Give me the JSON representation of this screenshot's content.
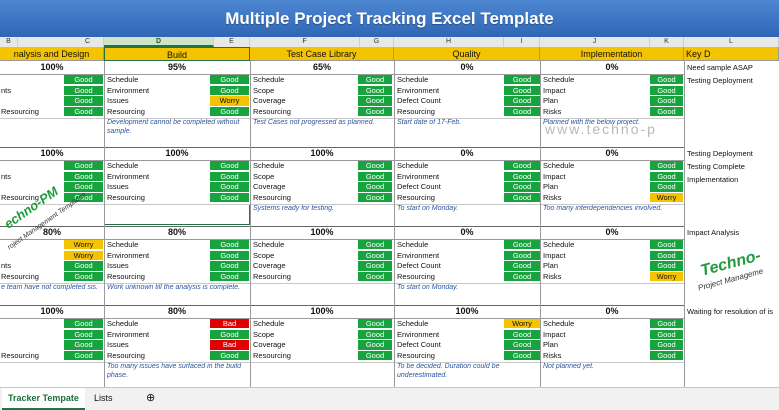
{
  "window": {
    "title": "Multiple Project Tracking Excel Template"
  },
  "column_letters": [
    "B",
    "C",
    "D",
    "E",
    "F",
    "G",
    "H",
    "I",
    "J",
    "K",
    "L"
  ],
  "sections": [
    "nalysis and Design",
    "Build",
    "Test Case Library",
    "Quality",
    "Implementation",
    "Key D"
  ],
  "projects": [
    {
      "percents": [
        "100%",
        "95%",
        "65%",
        "0%",
        "0%"
      ],
      "analysis": {
        "labels": [
          "",
          "nts",
          "",
          "Resourcing"
        ],
        "status": [
          "Good",
          "Good",
          "Good",
          "Good"
        ]
      },
      "build": {
        "labels": [
          "Schedule",
          "Environment",
          "Issues",
          "Resourcing"
        ],
        "status": [
          "Good",
          "Good",
          "Worry",
          "Good"
        ],
        "note": "Development cannot be completed without sample."
      },
      "test": {
        "labels": [
          "Schedule",
          "Scope",
          "Coverage",
          "Resourcing"
        ],
        "status": [
          "Good",
          "Good",
          "Good",
          "Good"
        ],
        "note": "Test Cases not progressed as planned."
      },
      "quality": {
        "labels": [
          "Schedule",
          "Environment",
          "Defect Count",
          "Resourcing"
        ],
        "status": [
          "Good",
          "Good",
          "Good",
          "Good"
        ],
        "note": "Start date of 17-Feb."
      },
      "impl": {
        "labels": [
          "Schedule",
          "Impact",
          "Plan",
          "Risks"
        ],
        "status": [
          "Good",
          "Good",
          "Good",
          "Good"
        ],
        "note": "Planned with the below project."
      },
      "analysis_note": "",
      "key": [
        "Need sample ASAP",
        "Testing Deployment"
      ]
    },
    {
      "percents": [
        "100%",
        "100%",
        "100%",
        "0%",
        "0%"
      ],
      "analysis": {
        "labels": [
          "",
          "nts",
          "",
          "Resourcing"
        ],
        "status": [
          "Good",
          "Good",
          "Good",
          "Good"
        ]
      },
      "build": {
        "labels": [
          "Schedule",
          "Environment",
          "Issues",
          "Resourcing"
        ],
        "status": [
          "Good",
          "Good",
          "Good",
          "Good"
        ],
        "note": ""
      },
      "test": {
        "labels": [
          "Schedule",
          "Scope",
          "Coverage",
          "Resourcing"
        ],
        "status": [
          "Good",
          "Good",
          "Good",
          "Good"
        ],
        "note": "Systems ready for testing."
      },
      "quality": {
        "labels": [
          "Schedule",
          "Environment",
          "Defect Count",
          "Resourcing"
        ],
        "status": [
          "Good",
          "Good",
          "Good",
          "Good"
        ],
        "note": "To start on Monday."
      },
      "impl": {
        "labels": [
          "Schedule",
          "Impact",
          "Plan",
          "Risks"
        ],
        "status": [
          "Good",
          "Good",
          "Good",
          "Worry"
        ],
        "note": "Too many interdependencies involved."
      },
      "analysis_note": "",
      "key": [
        "Testing Deployment",
        "Testing Complete",
        "Implementation"
      ]
    },
    {
      "percents": [
        "80%",
        "80%",
        "100%",
        "0%",
        "0%"
      ],
      "analysis": {
        "labels": [
          "",
          "",
          "nts",
          "Resourcing"
        ],
        "status": [
          "Worry",
          "Worry",
          "Good",
          "Good"
        ]
      },
      "build": {
        "labels": [
          "Schedule",
          "Environment",
          "Issues",
          "Resourcing"
        ],
        "status": [
          "Good",
          "Good",
          "Good",
          "Good"
        ],
        "note": "Work unknown till the analysis is complete."
      },
      "test": {
        "labels": [
          "Schedule",
          "Scope",
          "Coverage",
          "Resourcing"
        ],
        "status": [
          "Good",
          "Good",
          "Good",
          "Good"
        ],
        "note": ""
      },
      "quality": {
        "labels": [
          "Schedule",
          "Environment",
          "Defect Count",
          "Resourcing"
        ],
        "status": [
          "Good",
          "Good",
          "Good",
          "Good"
        ],
        "note": "To start on Monday."
      },
      "impl": {
        "labels": [
          "Schedule",
          "Impact",
          "Plan",
          "Risks"
        ],
        "status": [
          "Good",
          "Good",
          "Good",
          "Worry"
        ],
        "note": ""
      },
      "analysis_note": "e team have not completed sis.",
      "key": [
        "Impact Analysis"
      ]
    },
    {
      "percents": [
        "100%",
        "80%",
        "100%",
        "100%",
        "0%"
      ],
      "analysis": {
        "labels": [
          "",
          "",
          "",
          "Resourcing"
        ],
        "status": [
          "Good",
          "Good",
          "Good",
          "Good"
        ]
      },
      "build": {
        "labels": [
          "Schedule",
          "Environment",
          "Issues",
          "Resourcing"
        ],
        "status": [
          "Bad",
          "Good",
          "Bad",
          "Good"
        ],
        "note": "Too many issues have surfaced in the build phase."
      },
      "test": {
        "labels": [
          "Schedule",
          "Scope",
          "Coverage",
          "Resourcing"
        ],
        "status": [
          "Good",
          "Good",
          "Good",
          "Good"
        ],
        "note": ""
      },
      "quality": {
        "labels": [
          "Schedule",
          "Environment",
          "Defect Count",
          "Resourcing"
        ],
        "status": [
          "Worry",
          "Good",
          "Good",
          "Good"
        ],
        "note": "To be decided. Duration could be underestimated."
      },
      "impl": {
        "labels": [
          "Schedule",
          "Impact",
          "Plan",
          "Risks"
        ],
        "status": [
          "Good",
          "Good",
          "Good",
          "Good"
        ],
        "note": "Not planned yet."
      },
      "analysis_note": "",
      "key": [
        "Waiting for resolution of is"
      ]
    }
  ],
  "watermarks": {
    "site": "www.techno-p",
    "logo_left": "echno-PM",
    "logo_left_sub": "roject Management Templates",
    "logo_right": "Techno-",
    "logo_right_sub": "Project Manageme"
  },
  "tabs": {
    "active": "Tracker Tempate",
    "other": "Lists",
    "add": "⊕"
  },
  "colors": {
    "good": "#17a33e",
    "worry": "#f5c400",
    "bad": "#e00000",
    "header": "#f5c400",
    "banner": "#3a73c4"
  }
}
